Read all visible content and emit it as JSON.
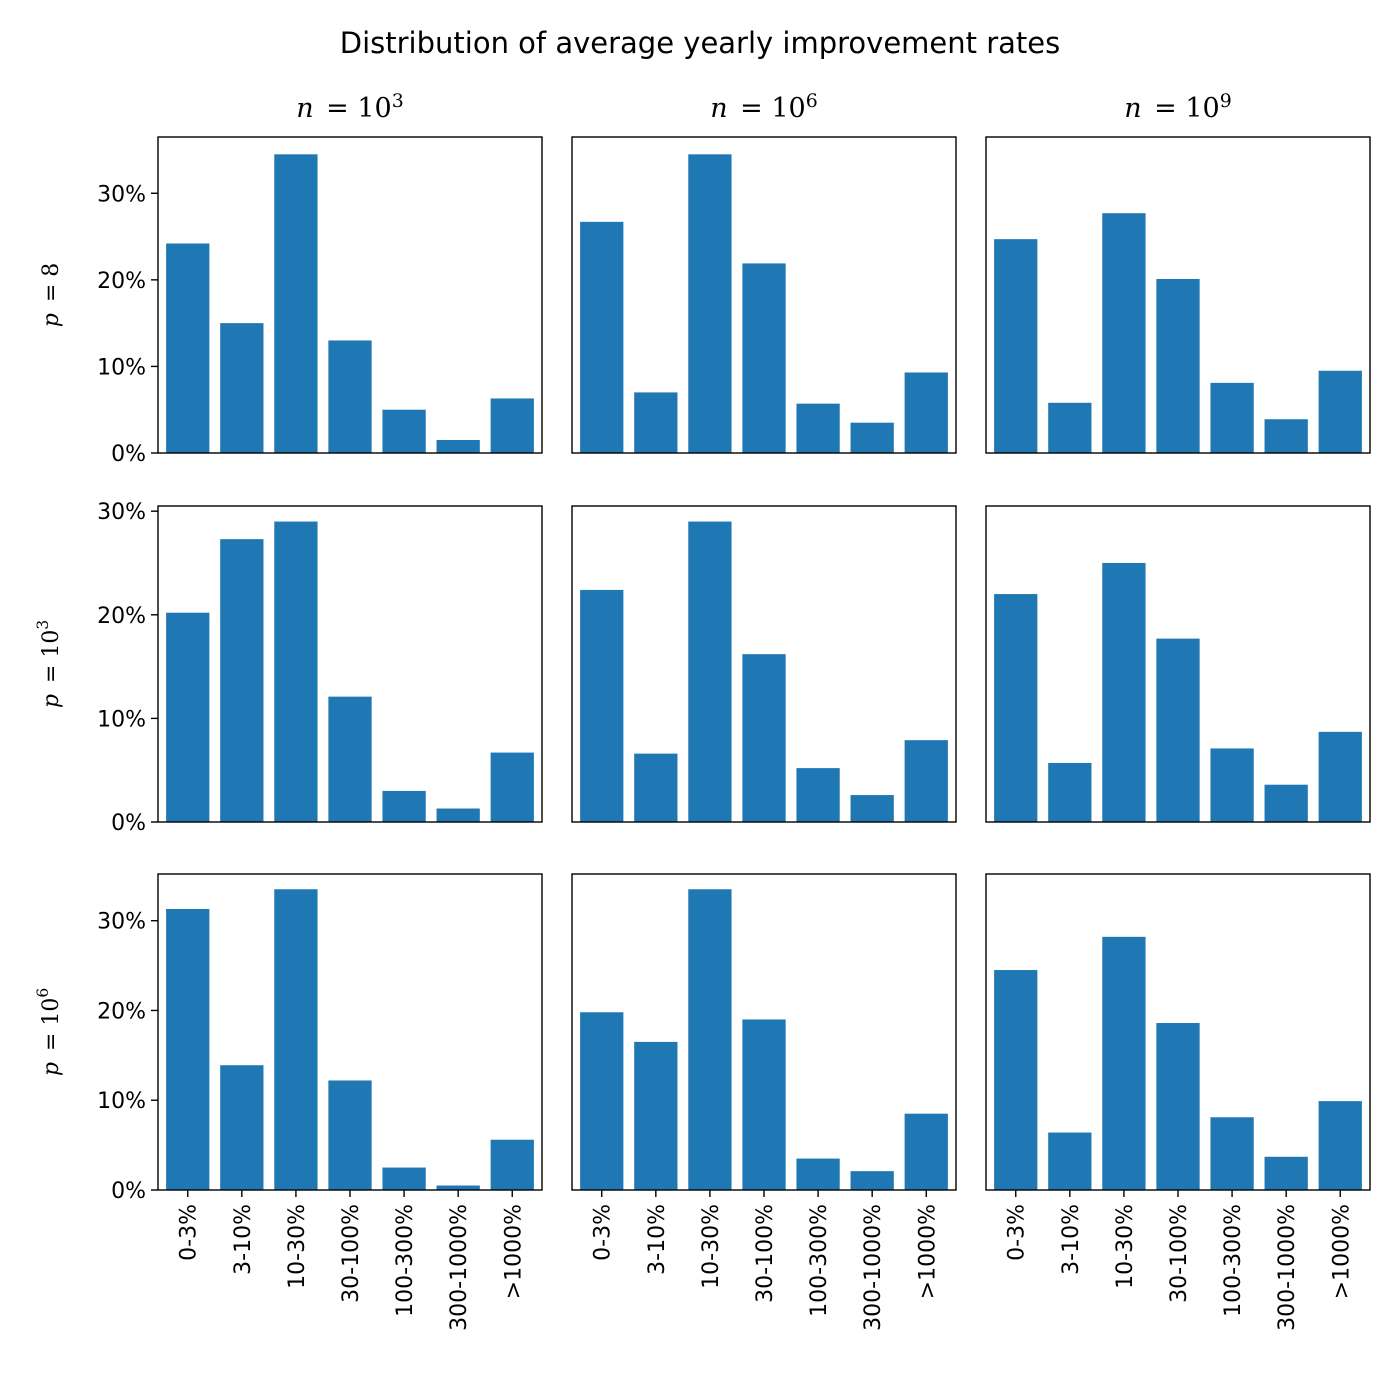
{
  "chart_data": {
    "type": "bar",
    "title": "Distribution of average yearly improvement rates",
    "categories": [
      "0-3%",
      "3-10%",
      "10-30%",
      "30-100%",
      "100-300%",
      "300-1000%",
      ">1000%"
    ],
    "columns": [
      {
        "label": "n = 10",
        "exponent": "3"
      },
      {
        "label": "n = 10",
        "exponent": "6"
      },
      {
        "label": "n = 10",
        "exponent": "9"
      }
    ],
    "rows": [
      {
        "label": "p = 8",
        "exponent": "",
        "yticks": [
          0,
          10,
          20,
          30
        ],
        "ytick_labels": [
          "0%",
          "10%",
          "20%",
          "30%"
        ],
        "ylim": [
          0,
          36.5
        ]
      },
      {
        "label": "p = 10",
        "exponent": "3",
        "yticks": [
          0,
          10,
          20,
          30
        ],
        "ytick_labels": [
          "0%",
          "10%",
          "20%",
          "30%"
        ],
        "ylim": [
          0,
          30.5
        ]
      },
      {
        "label": "p = 10",
        "exponent": "6",
        "yticks": [
          0,
          10,
          20,
          30
        ],
        "ytick_labels": [
          "0%",
          "10%",
          "20%",
          "30%"
        ],
        "ylim": [
          0,
          35.2
        ]
      }
    ],
    "panels": [
      [
        {
          "values": [
            24.2,
            15.0,
            34.5,
            13.0,
            5.0,
            1.5,
            6.3
          ]
        },
        {
          "values": [
            26.7,
            7.0,
            34.5,
            21.9,
            5.7,
            3.5,
            9.3
          ]
        },
        {
          "values": [
            24.7,
            5.8,
            27.7,
            20.1,
            8.1,
            3.9,
            9.5
          ]
        }
      ],
      [
        {
          "values": [
            20.2,
            27.3,
            29.0,
            12.1,
            3.0,
            1.3,
            6.7
          ]
        },
        {
          "values": [
            22.4,
            6.6,
            29.0,
            16.2,
            5.2,
            2.6,
            7.9
          ]
        },
        {
          "values": [
            22.0,
            5.7,
            25.0,
            17.7,
            7.1,
            3.6,
            8.7
          ]
        }
      ],
      [
        {
          "values": [
            31.3,
            13.9,
            33.5,
            12.2,
            2.5,
            0.5,
            5.6
          ]
        },
        {
          "values": [
            19.8,
            16.5,
            33.5,
            19.0,
            3.5,
            2.1,
            8.5
          ]
        },
        {
          "values": [
            24.5,
            6.4,
            28.2,
            18.6,
            8.1,
            3.7,
            9.9
          ]
        }
      ]
    ],
    "grid": false,
    "legend": "none"
  }
}
